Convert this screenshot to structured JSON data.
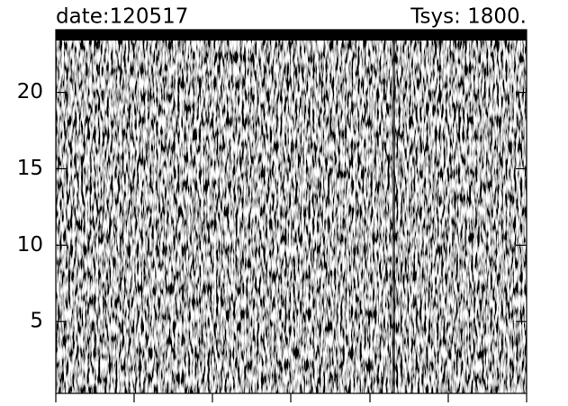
{
  "chart_data": {
    "type": "waterfall-image",
    "title_left": "date:120517",
    "title_right": "Tsys: 1800.",
    "ylim": [
      0.3,
      24.1
    ],
    "yticks": [
      5,
      10,
      15,
      20
    ]
  }
}
